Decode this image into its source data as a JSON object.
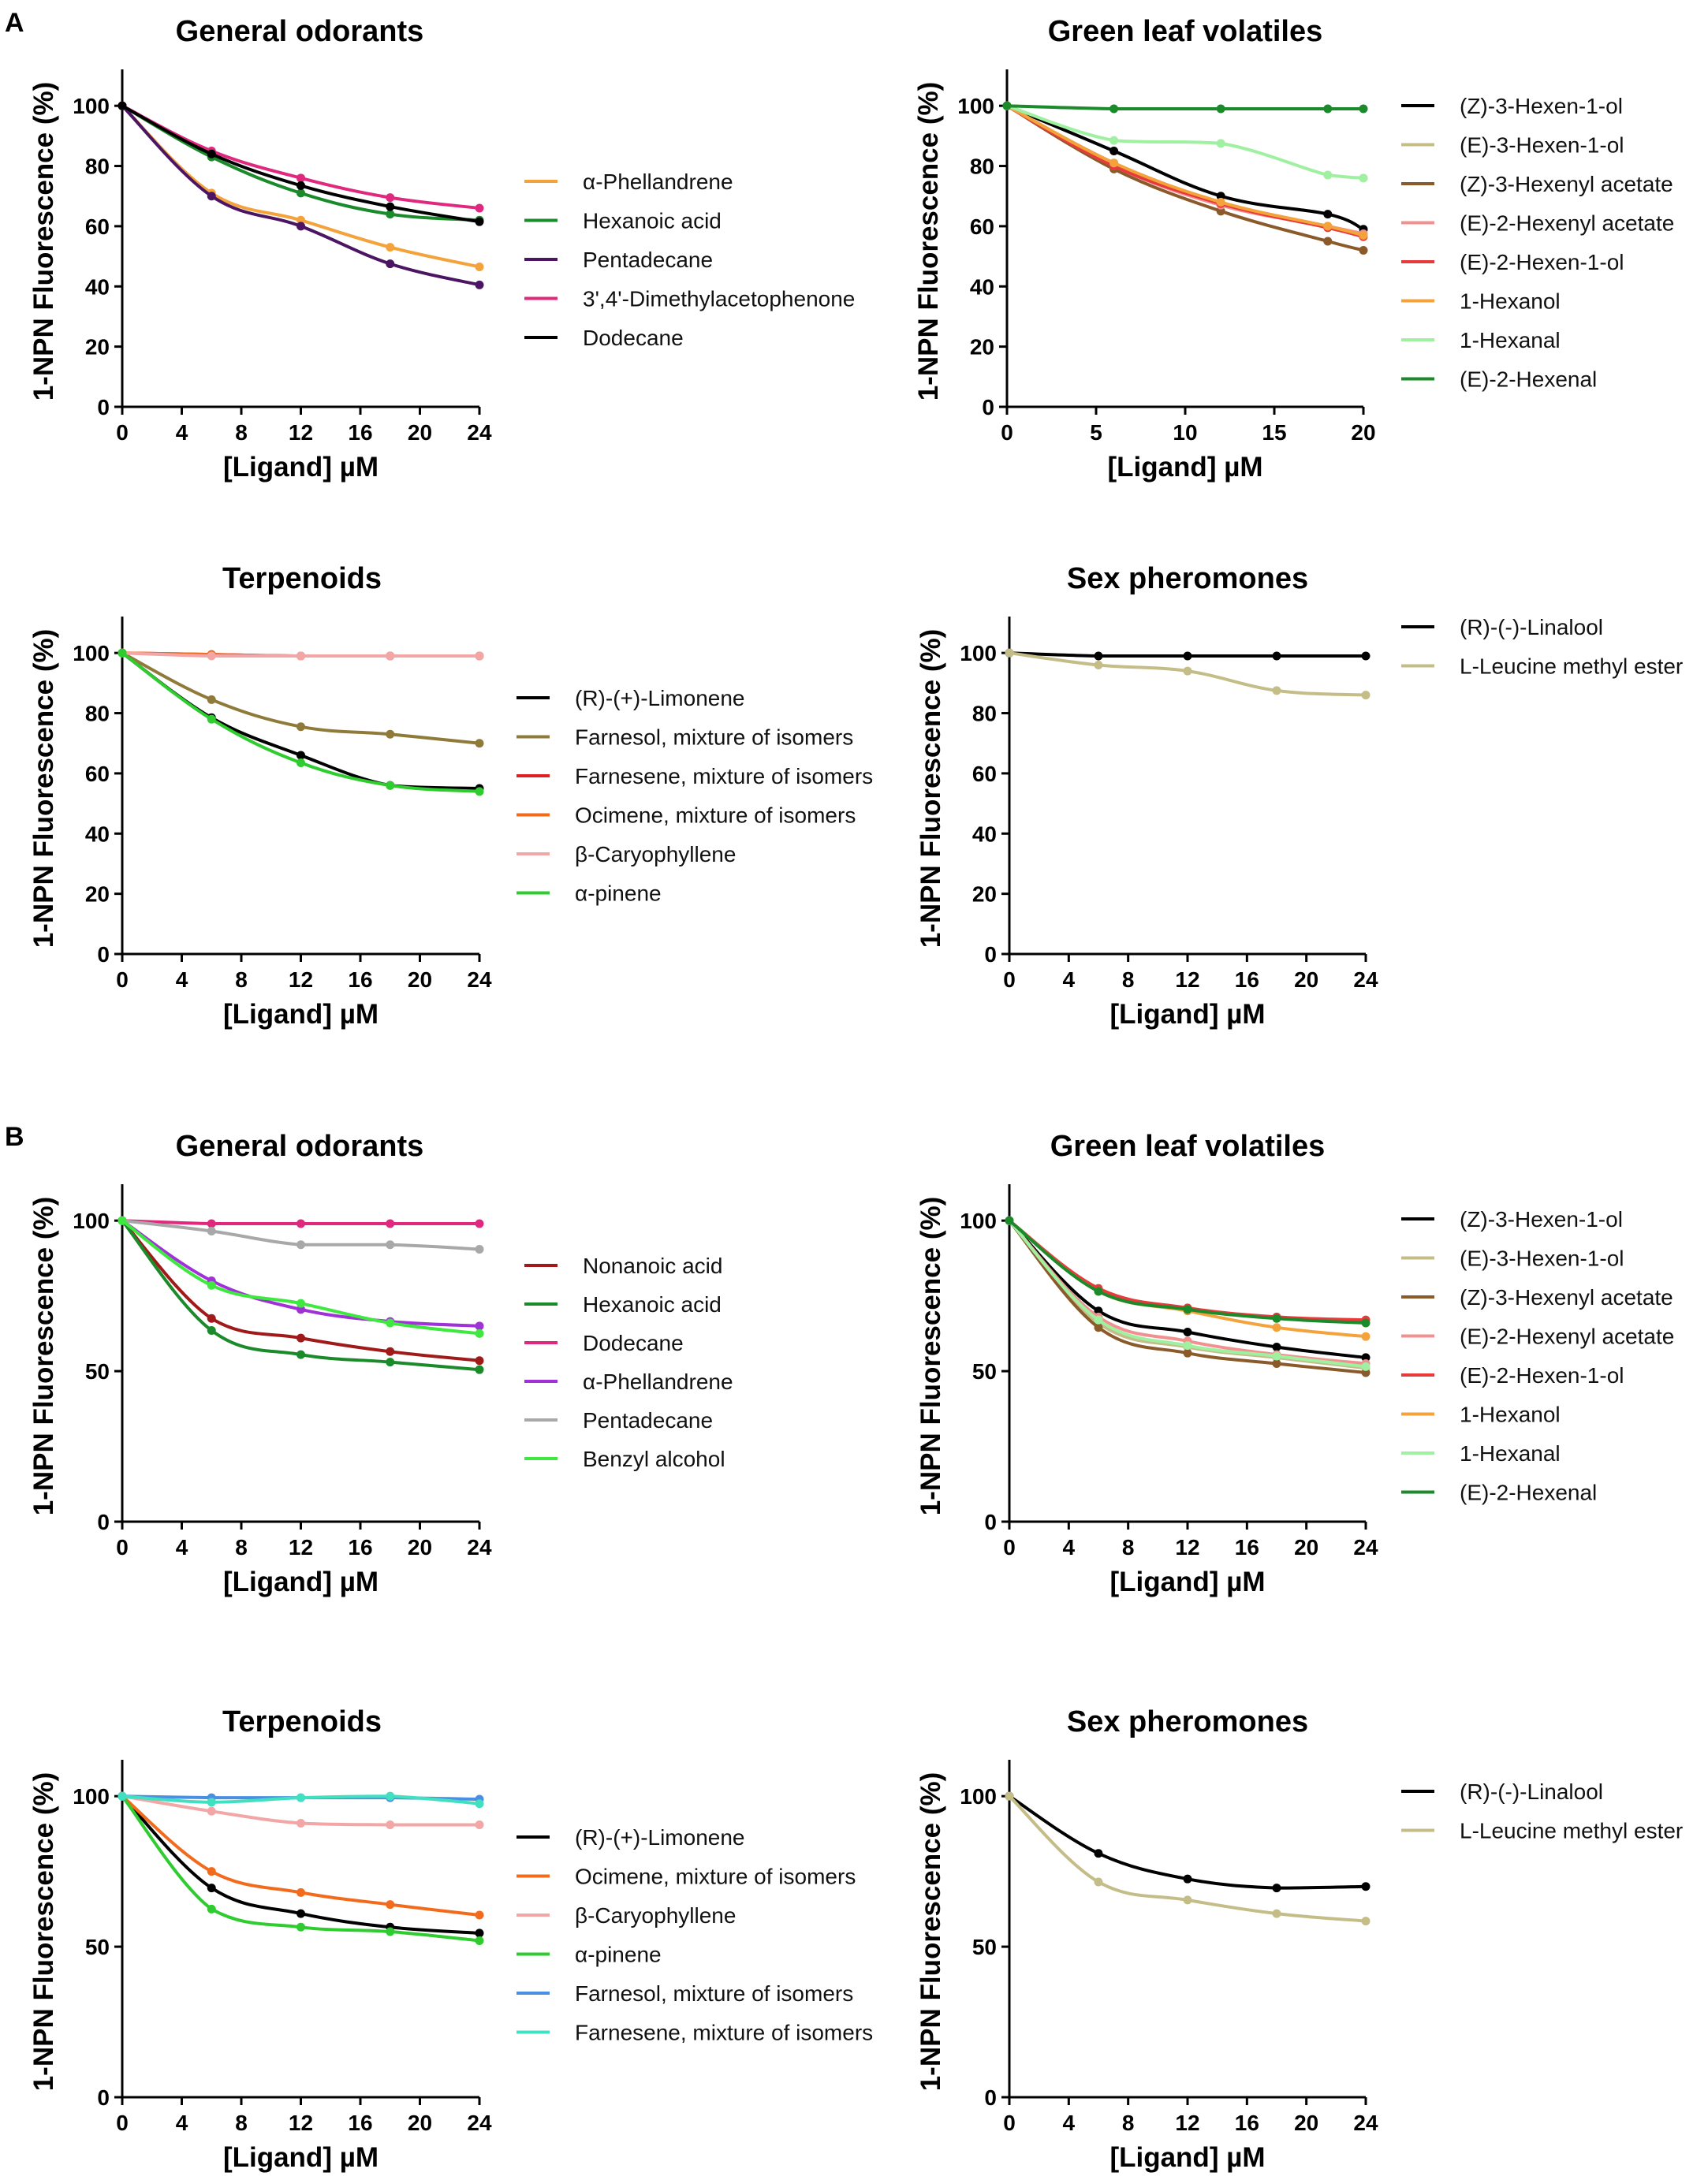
{
  "figure": {
    "panel_letters": [
      "A",
      "B"
    ]
  },
  "chart_data": [
    {
      "panel": "A",
      "type": "line",
      "title": "General odorants",
      "xlabel": "[Ligand] µM",
      "ylabel": "1-NPN Fluorescence (%)",
      "xlim": [
        0,
        24
      ],
      "ylim": [
        0,
        110
      ],
      "xticks": [
        0,
        4,
        8,
        12,
        16,
        20,
        24
      ],
      "yticks": [
        0,
        20,
        40,
        60,
        80,
        100
      ],
      "x": [
        0,
        6,
        12,
        18,
        24
      ],
      "series": [
        {
          "name": "α-Phellandrene",
          "color": "#f4a23b",
          "values": [
            100,
            71,
            62,
            53,
            46.5
          ]
        },
        {
          "name": "Hexanoic acid",
          "color": "#1a8a2a",
          "values": [
            100,
            83,
            71,
            64,
            62
          ]
        },
        {
          "name": "Pentadecane",
          "color": "#4b1563",
          "values": [
            100,
            70,
            60,
            47.5,
            40.5
          ]
        },
        {
          "name": "3',4'-Dimethylacetophenone",
          "color": "#e0297e",
          "values": [
            100,
            85,
            76,
            69.5,
            66
          ]
        },
        {
          "name": "Dodecane",
          "color": "#000000",
          "values": [
            100,
            84,
            73.5,
            66.5,
            61.5
          ]
        }
      ]
    },
    {
      "panel": "A",
      "type": "line",
      "title": "Green leaf volatiles",
      "xlabel": "[Ligand] µM",
      "ylabel": "1-NPN Fluorescence (%)",
      "xlim": [
        0,
        20
      ],
      "ylim": [
        0,
        110
      ],
      "xticks": [
        0,
        5,
        10,
        15,
        20
      ],
      "yticks": [
        0,
        20,
        40,
        60,
        80,
        100
      ],
      "x": [
        0,
        6,
        12,
        18,
        20
      ],
      "series": [
        {
          "name": "(Z)-3-Hexen-1-ol",
          "color": "#000000",
          "values": [
            100,
            85,
            70,
            64,
            59
          ]
        },
        {
          "name": "(E)-3-Hexen-1-ol",
          "color": "#c4bd88",
          "values": [
            100,
            81,
            67,
            60,
            57
          ]
        },
        {
          "name": "(Z)-3-Hexenyl acetate",
          "color": "#8b5a2b",
          "values": [
            100,
            79,
            65,
            55,
            52
          ]
        },
        {
          "name": "(E)-2-Hexenyl acetate",
          "color": "#f28f8f",
          "values": [
            100,
            80,
            67,
            60,
            57.5
          ]
        },
        {
          "name": "(E)-2-Hexen-1-ol",
          "color": "#e83a3a",
          "values": [
            100,
            80,
            67.5,
            59.5,
            56.5
          ]
        },
        {
          "name": "1-Hexanol",
          "color": "#f4a23b",
          "values": [
            100,
            81,
            68,
            60,
            57
          ]
        },
        {
          "name": "1-Hexanal",
          "color": "#9ff0a0",
          "values": [
            100,
            88.5,
            87.5,
            77,
            76
          ]
        },
        {
          "name": "(E)-2-Hexenal",
          "color": "#1a8a2a",
          "values": [
            100,
            99,
            99,
            99,
            99
          ]
        }
      ]
    },
    {
      "panel": "A",
      "type": "line",
      "title": "Terpenoids",
      "xlabel": "[Ligand] µM",
      "ylabel": "1-NPN Fluorescence (%)",
      "xlim": [
        0,
        24
      ],
      "ylim": [
        0,
        110
      ],
      "xticks": [
        0,
        4,
        8,
        12,
        16,
        20,
        24
      ],
      "yticks": [
        0,
        20,
        40,
        60,
        80,
        100
      ],
      "x": [
        0,
        6,
        12,
        18,
        24
      ],
      "series": [
        {
          "name": "(R)-(+)-Limonene",
          "color": "#000000",
          "values": [
            100,
            78.5,
            66,
            56,
            55
          ]
        },
        {
          "name": "Farnesol, mixture of isomers",
          "color": "#8f7a3a",
          "values": [
            100,
            84.5,
            75.5,
            73,
            70
          ]
        },
        {
          "name": "Farnesene, mixture of isomers",
          "color": "#e02020",
          "values": [
            100,
            99.5,
            99,
            99,
            99
          ]
        },
        {
          "name": "Ocimene, mixture of isomers",
          "color": "#f26b1d",
          "values": [
            100,
            99.5,
            99,
            99,
            99
          ]
        },
        {
          "name": "β-Caryophyllene",
          "color": "#f2a6a6",
          "values": [
            100,
            99,
            99,
            99,
            99
          ]
        },
        {
          "name": "α-pinene",
          "color": "#2ecc2e",
          "values": [
            100,
            78,
            63.5,
            56,
            54
          ]
        }
      ]
    },
    {
      "panel": "A",
      "type": "line",
      "title": "Sex pheromones",
      "xlabel": "[Ligand] µM",
      "ylabel": "1-NPN Fluorescence (%)",
      "xlim": [
        0,
        24
      ],
      "ylim": [
        0,
        110
      ],
      "xticks": [
        0,
        4,
        8,
        12,
        16,
        20,
        24
      ],
      "yticks": [
        0,
        20,
        40,
        60,
        80,
        100
      ],
      "x": [
        0,
        6,
        12,
        18,
        24
      ],
      "series": [
        {
          "name": "(R)-(-)-Linalool",
          "color": "#000000",
          "values": [
            100,
            99,
            99,
            99,
            99
          ]
        },
        {
          "name": "L-Leucine methyl ester",
          "color": "#c4bd88",
          "values": [
            100,
            96,
            94,
            87.5,
            86
          ]
        }
      ]
    },
    {
      "panel": "B",
      "type": "line",
      "title": "General odorants",
      "xlabel": "[Ligand] µM",
      "ylabel": "1-NPN Fluorescence (%)",
      "xlim": [
        0,
        24
      ],
      "ylim": [
        0,
        110
      ],
      "xticks": [
        0,
        4,
        8,
        12,
        16,
        20,
        24
      ],
      "yticks": [
        0,
        50,
        100
      ],
      "x": [
        0,
        6,
        12,
        18,
        24
      ],
      "series": [
        {
          "name": "Nonanoic acid",
          "color": "#a01a1a",
          "values": [
            100,
            67.5,
            61,
            56.5,
            53.5
          ]
        },
        {
          "name": "Hexanoic acid",
          "color": "#1a8a2a",
          "values": [
            100,
            63.5,
            55.5,
            53,
            50.5
          ]
        },
        {
          "name": "Dodecane",
          "color": "#e0297e",
          "values": [
            100,
            99,
            99,
            99,
            99
          ]
        },
        {
          "name": "α-Phellandrene",
          "color": "#a030d8",
          "values": [
            100,
            80,
            70.5,
            66.5,
            65
          ]
        },
        {
          "name": "Pentadecane",
          "color": "#a8a8a8",
          "values": [
            100,
            96.5,
            92,
            92,
            90.5
          ]
        },
        {
          "name": "Benzyl alcohol",
          "color": "#3ee83e",
          "values": [
            100,
            78.5,
            72.5,
            66,
            62.5
          ]
        }
      ]
    },
    {
      "panel": "B",
      "type": "line",
      "title": "Green leaf volatiles",
      "xlabel": "[Ligand] µM",
      "ylabel": "1-NPN Fluorescence (%)",
      "xlim": [
        0,
        24
      ],
      "ylim": [
        0,
        110
      ],
      "xticks": [
        0,
        4,
        8,
        12,
        16,
        20,
        24
      ],
      "yticks": [
        0,
        50,
        100
      ],
      "x": [
        0,
        6,
        12,
        18,
        24
      ],
      "series": [
        {
          "name": "(Z)-3-Hexen-1-ol",
          "color": "#000000",
          "values": [
            100,
            70,
            63,
            58,
            54.5
          ]
        },
        {
          "name": "(E)-3-Hexen-1-ol",
          "color": "#c4bd88",
          "values": [
            100,
            66,
            58,
            54.5,
            51
          ]
        },
        {
          "name": "(Z)-3-Hexenyl acetate",
          "color": "#8b5a2b",
          "values": [
            100,
            64.5,
            56,
            52.5,
            49.5
          ]
        },
        {
          "name": "(E)-2-Hexenyl acetate",
          "color": "#f28f8f",
          "values": [
            100,
            68,
            60,
            55.5,
            52.5
          ]
        },
        {
          "name": "(E)-2-Hexen-1-ol",
          "color": "#e83a3a",
          "values": [
            100,
            77.5,
            71,
            68,
            67
          ]
        },
        {
          "name": "1-Hexanol",
          "color": "#f4a23b",
          "values": [
            100,
            76.5,
            70,
            64.5,
            61.5
          ]
        },
        {
          "name": "1-Hexanal",
          "color": "#9ff0a0",
          "values": [
            100,
            67,
            58.5,
            55,
            51.5
          ]
        },
        {
          "name": "(E)-2-Hexenal",
          "color": "#1a8a2a",
          "values": [
            100,
            76.5,
            70.5,
            67.5,
            66
          ]
        }
      ]
    },
    {
      "panel": "B",
      "type": "line",
      "title": "Terpenoids",
      "xlabel": "[Ligand] µM",
      "ylabel": "1-NPN Fluorescence (%)",
      "xlim": [
        0,
        24
      ],
      "ylim": [
        0,
        110
      ],
      "xticks": [
        0,
        4,
        8,
        12,
        16,
        20,
        24
      ],
      "yticks": [
        0,
        50,
        100
      ],
      "x": [
        0,
        6,
        12,
        18,
        24
      ],
      "series": [
        {
          "name": "(R)-(+)-Limonene",
          "color": "#000000",
          "values": [
            100,
            69.5,
            61,
            56.5,
            54.5
          ]
        },
        {
          "name": "Ocimene, mixture of isomers",
          "color": "#f26b1d",
          "values": [
            100,
            75,
            68,
            64,
            60.5
          ]
        },
        {
          "name": "β-Caryophyllene",
          "color": "#f2a6a6",
          "values": [
            100,
            95,
            91,
            90.5,
            90.5
          ]
        },
        {
          "name": "α-pinene",
          "color": "#2ecc2e",
          "values": [
            100,
            62.5,
            56.5,
            55,
            52
          ]
        },
        {
          "name": "Farnesol, mixture of isomers",
          "color": "#4a90e2",
          "values": [
            100,
            99.5,
            99.5,
            99.5,
            99
          ]
        },
        {
          "name": "Farnesene, mixture of isomers",
          "color": "#40e0c0",
          "values": [
            100,
            98,
            99.5,
            100,
            97.5
          ]
        }
      ]
    },
    {
      "panel": "B",
      "type": "line",
      "title": "Sex pheromones",
      "xlabel": "[Ligand] µM",
      "ylabel": "1-NPN Fluorescence (%)",
      "xlim": [
        0,
        24
      ],
      "ylim": [
        0,
        110
      ],
      "xticks": [
        0,
        4,
        8,
        12,
        16,
        20,
        24
      ],
      "yticks": [
        0,
        50,
        100
      ],
      "x": [
        0,
        6,
        12,
        18,
        24
      ],
      "series": [
        {
          "name": "(R)-(-)-Linalool",
          "color": "#000000",
          "values": [
            100,
            81,
            72.5,
            69.5,
            70
          ]
        },
        {
          "name": "L-Leucine methyl ester",
          "color": "#c4bd88",
          "values": [
            100,
            71.5,
            65.5,
            61,
            58.5
          ]
        }
      ]
    }
  ]
}
